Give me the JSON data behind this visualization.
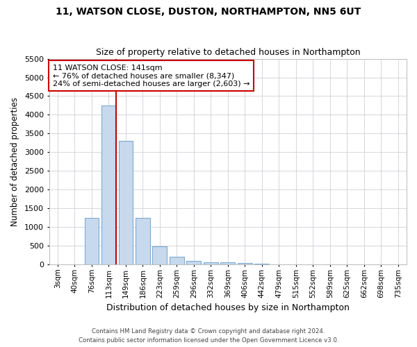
{
  "title": "11, WATSON CLOSE, DUSTON, NORTHAMPTON, NN5 6UT",
  "subtitle": "Size of property relative to detached houses in Northampton",
  "xlabel": "Distribution of detached houses by size in Northampton",
  "ylabel": "Number of detached properties",
  "footer_line1": "Contains HM Land Registry data © Crown copyright and database right 2024.",
  "footer_line2": "Contains public sector information licensed under the Open Government Licence v3.0.",
  "annotation_title": "11 WATSON CLOSE: 141sqm",
  "annotation_line1": "← 76% of detached houses are smaller (8,347)",
  "annotation_line2": "24% of semi-detached houses are larger (2,603) →",
  "property_size_bin_index": 3,
  "bar_color": "#c8d9ed",
  "bar_edge_color": "#7aaad0",
  "vline_color": "#cc0000",
  "annotation_box_color": "#cc0000",
  "categories": [
    "3sqm",
    "40sqm",
    "76sqm",
    "113sqm",
    "149sqm",
    "186sqm",
    "223sqm",
    "259sqm",
    "296sqm",
    "332sqm",
    "369sqm",
    "406sqm",
    "442sqm",
    "479sqm",
    "515sqm",
    "552sqm",
    "589sqm",
    "625sqm",
    "662sqm",
    "698sqm",
    "735sqm"
  ],
  "values": [
    0,
    0,
    1250,
    4250,
    3300,
    1250,
    480,
    200,
    100,
    60,
    50,
    40,
    15,
    0,
    0,
    0,
    0,
    0,
    0,
    0,
    0
  ],
  "ylim": [
    0,
    5500
  ],
  "yticks": [
    0,
    500,
    1000,
    1500,
    2000,
    2500,
    3000,
    3500,
    4000,
    4500,
    5000,
    5500
  ],
  "background_color": "#ffffff",
  "grid_color": "#d0d0d8"
}
